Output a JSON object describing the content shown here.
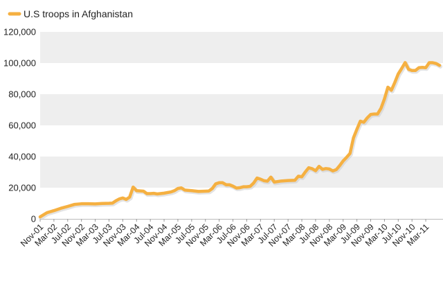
{
  "chart_data": {
    "type": "line",
    "title": "",
    "xlabel": "",
    "ylabel": "",
    "ylim": [
      0,
      120000
    ],
    "y_ticks": [
      0,
      20000,
      40000,
      60000,
      80000,
      100000,
      120000
    ],
    "y_tick_labels": [
      "0",
      "20,000",
      "40,000",
      "60,000",
      "80,000",
      "100,000",
      "120,000"
    ],
    "x_tick_labels": [
      "Nov-01",
      "Mar-02",
      "Jul-02",
      "Nov-02",
      "Mar-03",
      "Jul-03",
      "Nov-03",
      "Mar-04",
      "Jul-04",
      "Nov-04",
      "Mar-05",
      "Jul-05",
      "Nov-05",
      "Mar-06",
      "Jul-06",
      "Nov-06",
      "Mar-07",
      "Jul-07",
      "Nov-07",
      "Mar-08",
      "Jul-08",
      "Nov-08",
      "Mar-09",
      "Jul-09",
      "Nov-09",
      "Mar-10",
      "Jul-10",
      "Nov-10",
      "Mar-11"
    ],
    "grid": "alternating horizontal bands",
    "legend_position": "top-left",
    "line_color": "#f5b041",
    "line_shadow_color": "#c8c8c8",
    "band_color": "#eeeeee",
    "series": [
      {
        "name": "U.S troops in Afghanistan",
        "points": [
          [
            "Nov-01",
            1300
          ],
          [
            "Jan-02",
            4000
          ],
          [
            "Mar-02",
            5300
          ],
          [
            "May-02",
            6800
          ],
          [
            "Jul-02",
            8000
          ],
          [
            "Sep-02",
            9300
          ],
          [
            "Nov-02",
            9700
          ],
          [
            "Jan-03",
            9700
          ],
          [
            "Mar-03",
            9600
          ],
          [
            "May-03",
            9900
          ],
          [
            "Jul-03",
            10000
          ],
          [
            "Aug-03",
            10100
          ],
          [
            "Sep-03",
            11600
          ],
          [
            "Oct-03",
            12800
          ],
          [
            "Nov-03",
            13400
          ],
          [
            "Dec-03",
            12500
          ],
          [
            "Jan-04",
            14000
          ],
          [
            "Feb-04",
            20400
          ],
          [
            "Mar-04",
            18100
          ],
          [
            "May-04",
            17800
          ],
          [
            "Jun-04",
            16200
          ],
          [
            "Jul-04",
            16200
          ],
          [
            "Aug-04",
            16400
          ],
          [
            "Sep-04",
            16000
          ],
          [
            "Nov-04",
            16500
          ],
          [
            "Jan-05",
            17300
          ],
          [
            "Feb-05",
            18100
          ],
          [
            "Mar-05",
            19500
          ],
          [
            "Apr-05",
            19900
          ],
          [
            "May-05",
            18500
          ],
          [
            "Jul-05",
            18100
          ],
          [
            "Sep-05",
            17600
          ],
          [
            "Nov-05",
            17800
          ],
          [
            "Dec-05",
            17900
          ],
          [
            "Jan-06",
            19500
          ],
          [
            "Feb-06",
            22500
          ],
          [
            "Mar-06",
            23200
          ],
          [
            "Apr-06",
            23200
          ],
          [
            "May-06",
            21900
          ],
          [
            "Jun-06",
            21900
          ],
          [
            "Jul-06",
            21000
          ],
          [
            "Aug-06",
            19800
          ],
          [
            "Sep-06",
            20000
          ],
          [
            "Oct-06",
            20600
          ],
          [
            "Nov-06",
            20600
          ],
          [
            "Dec-06",
            20900
          ],
          [
            "Jan-07",
            23000
          ],
          [
            "Feb-07",
            26200
          ],
          [
            "Mar-07",
            25500
          ],
          [
            "Apr-07",
            24500
          ],
          [
            "May-07",
            24200
          ],
          [
            "Jun-07",
            26800
          ],
          [
            "Jul-07",
            23600
          ],
          [
            "Sep-07",
            24300
          ],
          [
            "Nov-07",
            24600
          ],
          [
            "Jan-08",
            24800
          ],
          [
            "Feb-08",
            27400
          ],
          [
            "Mar-08",
            27000
          ],
          [
            "Apr-08",
            30100
          ],
          [
            "May-08",
            32800
          ],
          [
            "Jun-08",
            32200
          ],
          [
            "Jul-08",
            30900
          ],
          [
            "Aug-08",
            33700
          ],
          [
            "Sep-08",
            31800
          ],
          [
            "Oct-08",
            32300
          ],
          [
            "Nov-08",
            32000
          ],
          [
            "Dec-08",
            30800
          ],
          [
            "Jan-09",
            31600
          ],
          [
            "Feb-09",
            34200
          ],
          [
            "Mar-09",
            37200
          ],
          [
            "Apr-09",
            39500
          ],
          [
            "May-09",
            42000
          ],
          [
            "Jun-09",
            52000
          ],
          [
            "Jul-09",
            57500
          ],
          [
            "Aug-09",
            62700
          ],
          [
            "Sep-09",
            62000
          ],
          [
            "Oct-09",
            64800
          ],
          [
            "Nov-09",
            67000
          ],
          [
            "Dec-09",
            67300
          ],
          [
            "Jan-10",
            67300
          ],
          [
            "Feb-10",
            71000
          ],
          [
            "Mar-10",
            77000
          ],
          [
            "Apr-10",
            84500
          ],
          [
            "May-10",
            82500
          ],
          [
            "Jun-10",
            87500
          ],
          [
            "Jul-10",
            93000
          ],
          [
            "Aug-10",
            96500
          ],
          [
            "Sep-10",
            100300
          ],
          [
            "Oct-10",
            96000
          ],
          [
            "Nov-10",
            95200
          ],
          [
            "Dec-10",
            95200
          ],
          [
            "Jan-11",
            97000
          ],
          [
            "Feb-11",
            97200
          ],
          [
            "Mar-11",
            97000
          ],
          [
            "Apr-11",
            100200
          ],
          [
            "May-11",
            100200
          ],
          [
            "Jun-11",
            99700
          ],
          [
            "Jul-11",
            98500
          ]
        ]
      }
    ]
  }
}
